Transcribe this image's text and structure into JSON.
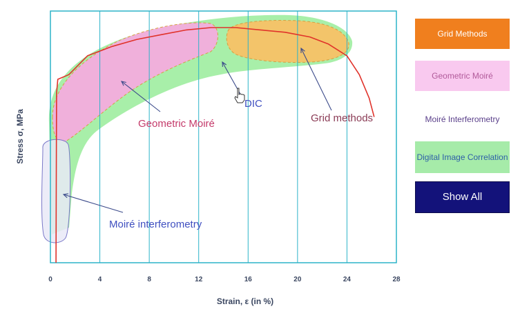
{
  "chart_data": {
    "type": "line",
    "title": "",
    "xlabel": "Strain, ε (in %)",
    "ylabel": "Stress σ, MPa",
    "xlim": [
      0,
      28
    ],
    "x_ticks": [
      "0",
      "4",
      "8",
      "12",
      "16",
      "20",
      "24",
      "28"
    ],
    "grid": true,
    "series": [
      {
        "x": [
          0.45,
          0.5,
          0.6,
          1.5,
          3,
          5,
          7,
          9,
          11,
          13,
          15,
          17,
          19,
          21,
          22.5,
          24,
          25,
          25.8,
          26.2
        ],
        "y": [
          0,
          0.72,
          0.78,
          0.8,
          0.88,
          0.92,
          0.95,
          0.97,
          0.99,
          1.0,
          1.0,
          0.99,
          0.98,
          0.96,
          0.93,
          0.88,
          0.8,
          0.7,
          0.62
        ]
      }
    ],
    "regions": [
      {
        "key": "dic",
        "label": "Digital Image Correlation",
        "color": "#9eeda0"
      },
      {
        "key": "geometric_moire",
        "label": "Geometric Moiré",
        "color": "#f7a9e0"
      },
      {
        "key": "grid_methods",
        "label": "Grid Methods",
        "color": "#fbbf63"
      },
      {
        "key": "moire_interferometry",
        "label": "Moiré Interferometry",
        "color": "#e9e9f7"
      }
    ],
    "annotations": [
      {
        "text": "Geometric Moiré",
        "color": "#c43a6a"
      },
      {
        "text": "DIC",
        "color": "#3f4fc0"
      },
      {
        "text": "Grid methods",
        "color": "#8a3b55"
      },
      {
        "text": "Moiré interferometry",
        "color": "#3f4fc0"
      }
    ],
    "colors": {
      "curve": "#e0322a",
      "gridline": "#2bb3c8",
      "frame": "#2bb3c8"
    }
  },
  "legend": {
    "grid_methods": {
      "label": "Grid Methods",
      "bg": "#f07f1e",
      "fg": "#ffffff"
    },
    "geometric_moire": {
      "label": "Geometric Moiré",
      "bg": "#f9c9ef",
      "fg": "#b15a9a"
    },
    "moire_interferometry": {
      "label": "Moiré Interferometry",
      "bg": "#ffffff",
      "fg": "#5a3f8a"
    },
    "dic": {
      "label": "Digital Image Correlation",
      "bg": "#a6eba9",
      "fg": "#2e5fa8"
    },
    "show_all": {
      "label": "Show All",
      "bg": "#13127a",
      "fg": "#ffffff"
    }
  }
}
